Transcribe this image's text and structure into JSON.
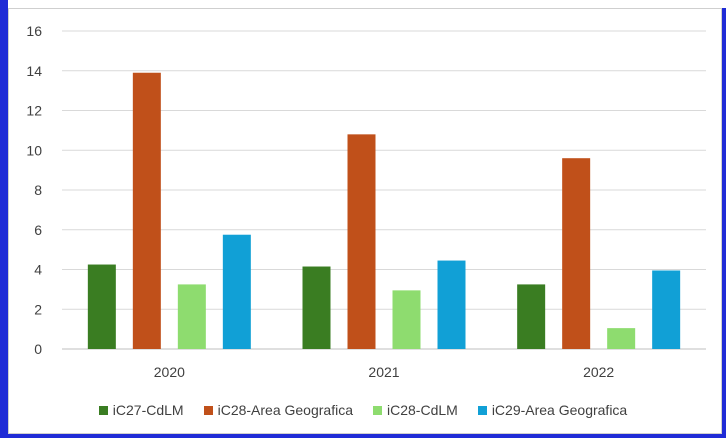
{
  "chart_data": {
    "type": "bar",
    "categories": [
      "2020",
      "2021",
      "2022"
    ],
    "series": [
      {
        "name": "iC27-CdLM",
        "color": "#3a7d22",
        "values": [
          4.25,
          4.15,
          3.25
        ]
      },
      {
        "name": "iC28-Area Geografica",
        "color": "#c0501a",
        "values": [
          13.9,
          10.8,
          9.6
        ]
      },
      {
        "name": "iC28-CdLM",
        "color": "#8edc6f",
        "values": [
          3.25,
          2.95,
          1.05
        ]
      },
      {
        "name": "iC29-Area Geografica",
        "color": "#11a0d6",
        "values": [
          5.75,
          4.45,
          3.95
        ]
      }
    ],
    "y_ticks": [
      "0",
      "2",
      "4",
      "6",
      "8",
      "10",
      "12",
      "14",
      "16"
    ],
    "ylim": [
      0,
      16
    ],
    "grid": true,
    "legend_position": "bottom"
  }
}
